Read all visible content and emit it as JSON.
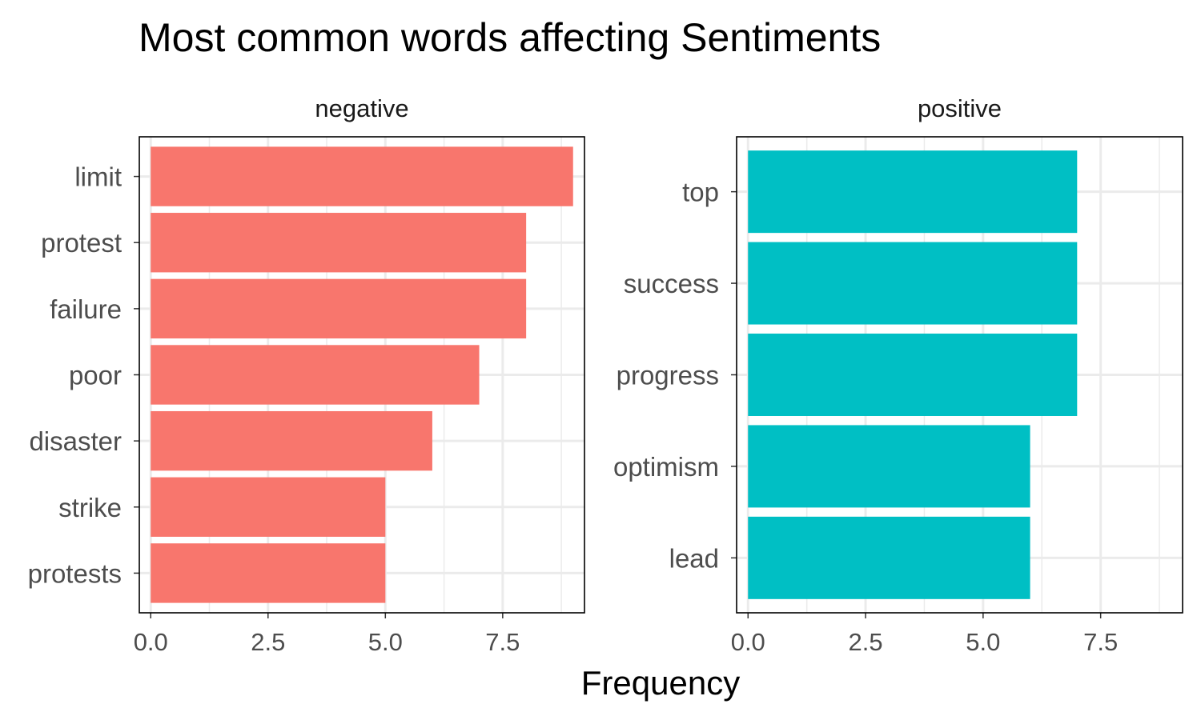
{
  "chart_data": {
    "type": "bar",
    "orientation": "horizontal",
    "title": "Most common words affecting Sentiments",
    "xlabel": "Frequency",
    "ylabel": "",
    "xlim": [
      0,
      9
    ],
    "x_ticks": [
      "0.0",
      "2.5",
      "5.0",
      "7.5"
    ],
    "x_tick_values": [
      0,
      2.5,
      5,
      7.5
    ],
    "grid": true,
    "legend": "none",
    "panels": [
      {
        "name": "negative",
        "color": "#F8766D",
        "categories": [
          "limit",
          "protest",
          "failure",
          "poor",
          "disaster",
          "strike",
          "protests"
        ],
        "values": [
          9,
          8,
          8,
          7,
          6,
          5,
          5
        ]
      },
      {
        "name": "positive",
        "color": "#00BFC4",
        "categories": [
          "top",
          "success",
          "progress",
          "optimism",
          "lead"
        ],
        "values": [
          7,
          7,
          7,
          6,
          6
        ]
      }
    ]
  }
}
